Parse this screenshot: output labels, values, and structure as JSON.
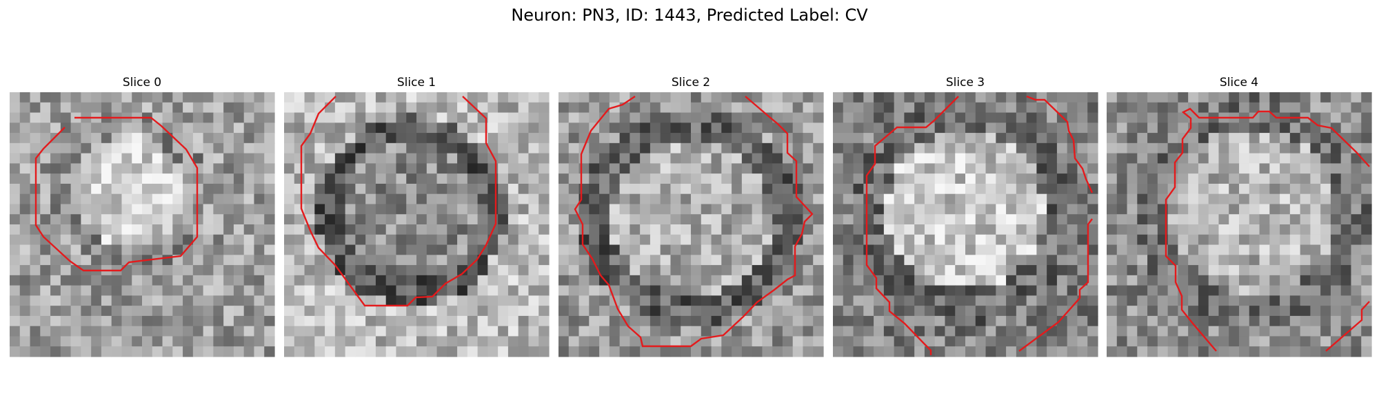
{
  "figure": {
    "title": "Neuron: PN3, ID: 1443, Predicted Label: CV"
  },
  "slices": [
    {
      "title": "Slice 0"
    },
    {
      "title": "Slice 1"
    },
    {
      "title": "Slice 2"
    },
    {
      "title": "Slice 3"
    },
    {
      "title": "Slice 4"
    }
  ],
  "colors": {
    "contour": "#e41a1c",
    "background": "#ffffff"
  }
}
